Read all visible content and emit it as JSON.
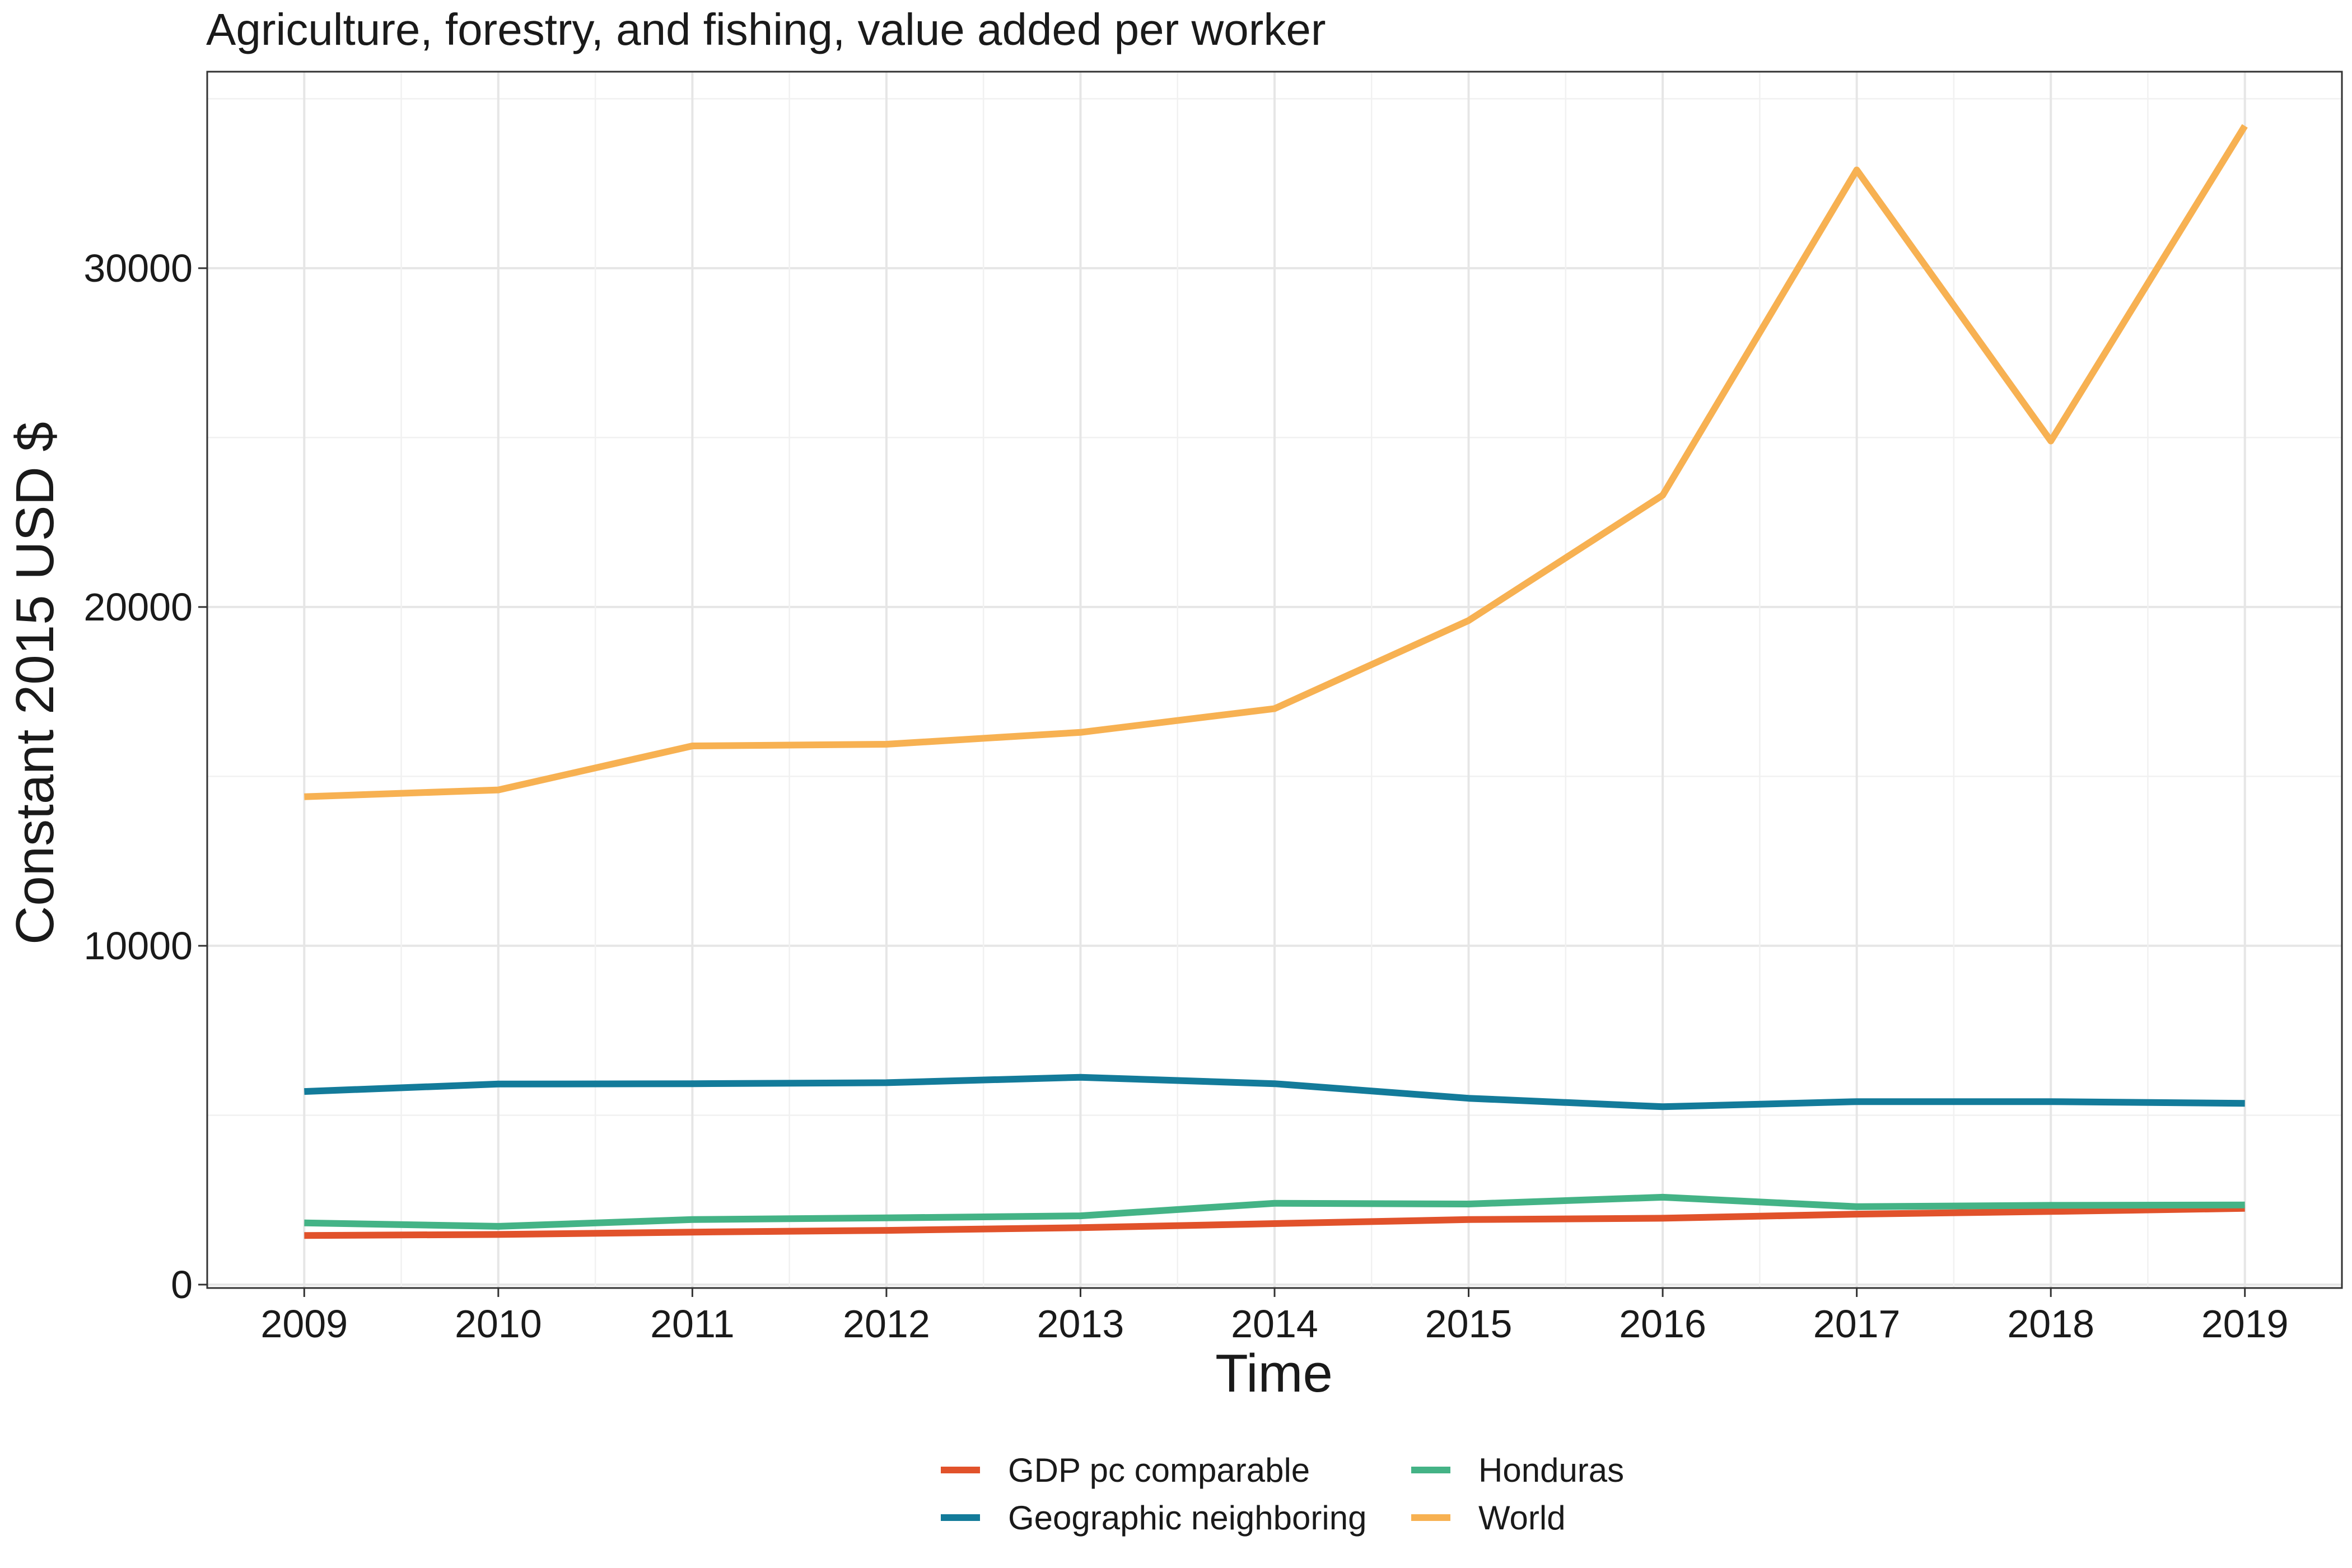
{
  "chart_data": {
    "type": "line",
    "title": "Agriculture, forestry, and fishing, value added per worker",
    "xlabel": "Time",
    "ylabel": "Constant 2015 USD $",
    "x": [
      2009,
      2010,
      2011,
      2012,
      2013,
      2014,
      2015,
      2016,
      2017,
      2018,
      2019
    ],
    "x_ticks": [
      "2009",
      "2010",
      "2011",
      "2012",
      "2013",
      "2014",
      "2015",
      "2016",
      "2017",
      "2018",
      "2019"
    ],
    "y_ticks": [
      "0",
      "10000",
      "20000",
      "30000"
    ],
    "xlim": [
      2008.5,
      2019.5
    ],
    "ylim": [
      -100,
      35800
    ],
    "grid": true,
    "legend_position": "bottom",
    "series": [
      {
        "name": "GDP pc comparable",
        "color": "#E1522B",
        "values": [
          1450,
          1480,
          1550,
          1600,
          1680,
          1800,
          1920,
          1960,
          2080,
          2160,
          2250
        ]
      },
      {
        "name": "Geographic neighboring",
        "color": "#137B9A",
        "values": [
          5700,
          5920,
          5930,
          5960,
          6120,
          5930,
          5500,
          5250,
          5400,
          5400,
          5350
        ]
      },
      {
        "name": "Honduras",
        "color": "#44B386",
        "values": [
          1820,
          1720,
          1920,
          1970,
          2030,
          2400,
          2380,
          2580,
          2300,
          2340,
          2350
        ]
      },
      {
        "name": "World",
        "color": "#F7B152",
        "values": [
          14400,
          14600,
          15900,
          15950,
          16300,
          17000,
          19600,
          23300,
          32900,
          24900,
          34200
        ]
      }
    ],
    "legend_layout": [
      [
        "GDP pc comparable",
        "Honduras"
      ],
      [
        "Geographic neighboring",
        "World"
      ]
    ]
  }
}
